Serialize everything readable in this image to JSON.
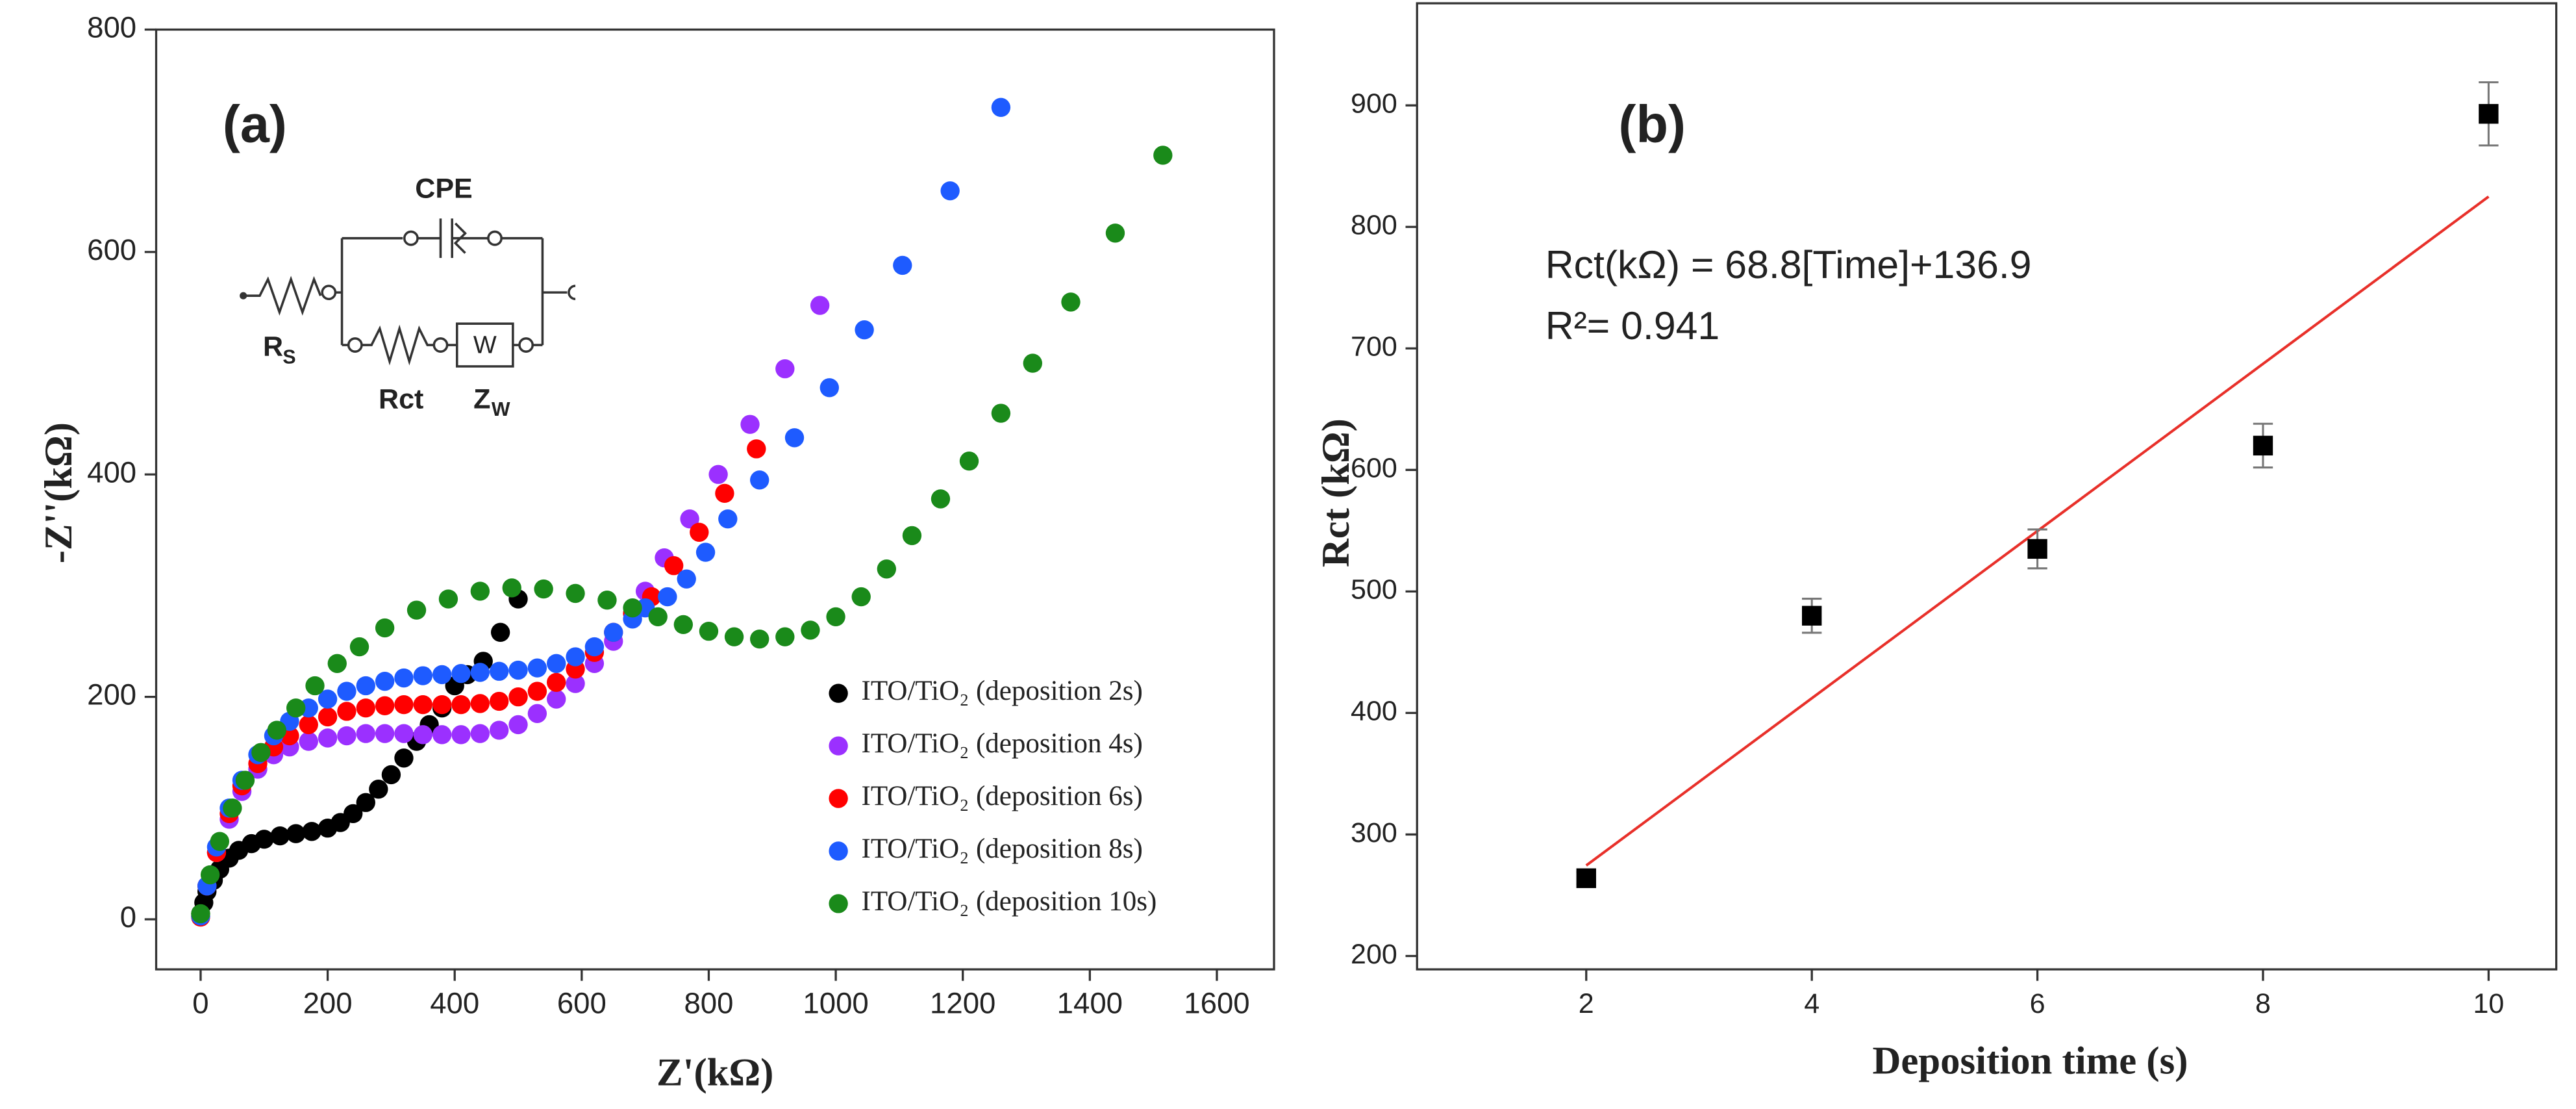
{
  "chart_data": [
    {
      "type": "scatter",
      "annotation": "(a)",
      "x_label": "Z'(kΩ)",
      "y_label": "-Z''(kΩ)",
      "xlim": [
        -70,
        1690
      ],
      "ylim": [
        -45,
        800
      ],
      "xticks": [
        0,
        200,
        400,
        600,
        800,
        1000,
        1200,
        1400,
        1600
      ],
      "yticks": [
        0,
        200,
        400,
        600,
        800
      ],
      "legend": "lower right",
      "inset": {
        "cpe": "CPE",
        "rs": "R",
        "rs_sub": "S",
        "rct": "Rct",
        "zw": "Z",
        "zw_sub": "W",
        "w": "W"
      },
      "series": [
        {
          "name": "ITO/TiO₂ (deposition 2s)",
          "color": "#000000",
          "marker": "circle",
          "x": [
            0,
            5,
            10,
            20,
            30,
            45,
            60,
            80,
            100,
            125,
            150,
            175,
            200,
            220,
            240,
            260,
            280,
            300,
            320,
            340,
            360,
            380,
            400,
            420,
            445,
            472,
            500
          ],
          "values": [
            5,
            15,
            25,
            35,
            45,
            55,
            62,
            68,
            72,
            75,
            77,
            79,
            82,
            87,
            95,
            105,
            117,
            130,
            145,
            160,
            175,
            190,
            210,
            220,
            232,
            258,
            288
          ]
        },
        {
          "name": "ITO/TiO₂ (deposition 4s)",
          "color": "#9b30ff",
          "marker": "circle",
          "x": [
            0,
            10,
            25,
            45,
            65,
            90,
            115,
            140,
            170,
            200,
            230,
            260,
            290,
            320,
            350,
            380,
            410,
            440,
            470,
            500,
            530,
            560,
            590,
            620,
            650,
            680,
            700,
            730,
            770,
            815,
            865,
            920,
            975
          ],
          "values": [
            3,
            30,
            60,
            90,
            115,
            135,
            148,
            155,
            160,
            163,
            165,
            167,
            167,
            167,
            166,
            166,
            166,
            167,
            170,
            175,
            185,
            198,
            212,
            230,
            250,
            275,
            295,
            325,
            360,
            400,
            445,
            495,
            552
          ]
        },
        {
          "name": "ITO/TiO₂ (deposition 6s)",
          "color": "#ff0000",
          "marker": "circle",
          "x": [
            0,
            10,
            25,
            45,
            65,
            90,
            115,
            140,
            170,
            200,
            230,
            260,
            290,
            320,
            350,
            380,
            410,
            440,
            470,
            500,
            530,
            560,
            590,
            620,
            650,
            680,
            710,
            745,
            785,
            825,
            875
          ],
          "values": [
            2,
            30,
            60,
            95,
            120,
            140,
            155,
            165,
            175,
            182,
            187,
            190,
            192,
            193,
            193,
            193,
            193,
            194,
            196,
            200,
            205,
            213,
            225,
            240,
            258,
            275,
            290,
            318,
            348,
            383,
            423
          ]
        },
        {
          "name": "ITO/TiO₂ (deposition 8s)",
          "color": "#1e5bff",
          "marker": "circle",
          "x": [
            0,
            10,
            25,
            45,
            65,
            90,
            115,
            140,
            170,
            200,
            230,
            260,
            290,
            320,
            350,
            380,
            410,
            440,
            470,
            500,
            530,
            560,
            590,
            620,
            650,
            680,
            700,
            735,
            765,
            795,
            830,
            880,
            935,
            990,
            1045,
            1105,
            1180,
            1260
          ],
          "values": [
            3,
            30,
            65,
            100,
            125,
            148,
            165,
            178,
            190,
            198,
            205,
            210,
            214,
            217,
            219,
            220,
            221,
            222,
            223,
            224,
            226,
            230,
            236,
            245,
            258,
            270,
            280,
            290,
            306,
            330,
            360,
            395,
            433,
            478,
            530,
            588,
            655,
            730
          ]
        },
        {
          "name": "ITO/TiO₂ (deposition 10s)",
          "color": "#1a8a1a",
          "marker": "circle",
          "x": [
            0,
            15,
            30,
            50,
            70,
            95,
            120,
            150,
            180,
            215,
            250,
            290,
            340,
            390,
            440,
            490,
            540,
            590,
            640,
            680,
            720,
            760,
            800,
            840,
            880,
            920,
            960,
            1000,
            1040,
            1080,
            1120,
            1165,
            1210,
            1260,
            1310,
            1370,
            1440,
            1515
          ],
          "values": [
            5,
            40,
            70,
            100,
            125,
            150,
            170,
            190,
            210,
            230,
            245,
            262,
            278,
            288,
            295,
            298,
            297,
            293,
            287,
            280,
            272,
            265,
            259,
            254,
            252,
            254,
            260,
            272,
            290,
            315,
            345,
            378,
            412,
            455,
            500,
            555,
            617,
            687
          ]
        }
      ]
    },
    {
      "type": "scatter",
      "annotation": "(b)",
      "equation": "Rct(kΩ) = 68.8[Time]+136.9",
      "r2": "R²= 0.941",
      "x_label": "Deposition time (s)",
      "y_label": "Rct (kΩ)",
      "xlim": [
        0.5,
        10.6
      ],
      "ylim": [
        189,
        984
      ],
      "xticks": [
        2,
        4,
        6,
        8,
        10
      ],
      "yticks": [
        200,
        300,
        400,
        500,
        600,
        700,
        800,
        900
      ],
      "series": [
        {
          "color": "#000000",
          "marker": "square",
          "x": [
            2,
            4,
            6,
            8,
            10
          ],
          "values": [
            264,
            480,
            535,
            620,
            893
          ],
          "errors": [
            5,
            14,
            16,
            18,
            26
          ]
        }
      ],
      "fit": {
        "color": "#e8302a",
        "x": [
          2,
          10
        ],
        "y": [
          274.5,
          824.9
        ]
      }
    }
  ]
}
